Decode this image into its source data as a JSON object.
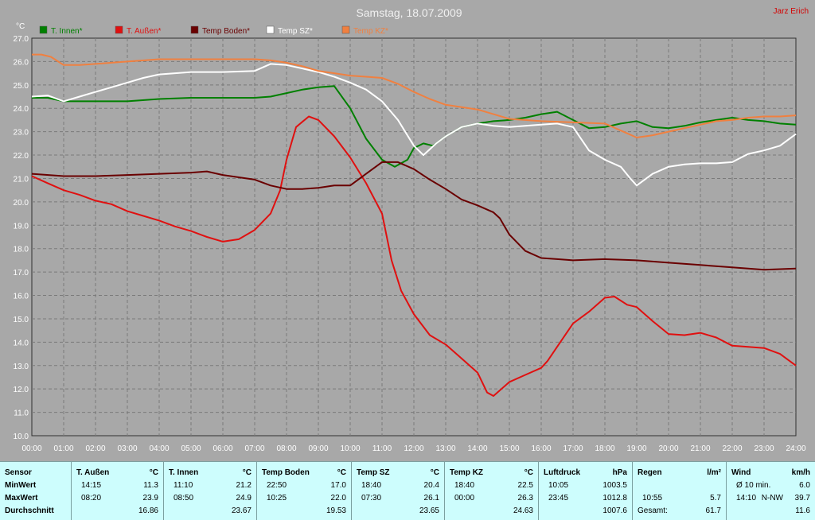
{
  "title": "Samstag, 18.07.2009",
  "author": "Jarz Erich",
  "chart_data": {
    "type": "line",
    "ylabel": "°C",
    "ylim": [
      10,
      27
    ],
    "y_ticks": [
      "10.0",
      "11.0",
      "12.0",
      "13.0",
      "14.0",
      "15.0",
      "16.0",
      "17.0",
      "18.0",
      "19.0",
      "20.0",
      "21.0",
      "22.0",
      "23.0",
      "24.0",
      "25.0",
      "26.0",
      "27.0"
    ],
    "x_ticks": [
      "00:00",
      "01:00",
      "02:00",
      "03:00",
      "04:00",
      "05:00",
      "06:00",
      "07:00",
      "08:00",
      "09:00",
      "10:00",
      "11:00",
      "12:00",
      "13:00",
      "14:00",
      "15:00",
      "16:00",
      "17:00",
      "18:00",
      "19:00",
      "20:00",
      "21:00",
      "22:00",
      "23:00",
      "24:00"
    ],
    "grid": true,
    "legend_placement": "top",
    "series": [
      {
        "name": "T. Innen*",
        "color": "#008000",
        "x": [
          0,
          0.5,
          1,
          1.5,
          2,
          3,
          4,
          5,
          6,
          7,
          7.5,
          8,
          8.5,
          9,
          9.5,
          10,
          10.5,
          11,
          11.4,
          11.8,
          12,
          12.3,
          12.6,
          13,
          13.5,
          14,
          14.5,
          15,
          15.5,
          16,
          16.5,
          17,
          17.5,
          18,
          18.5,
          19,
          19.5,
          20,
          20.5,
          21,
          21.5,
          22,
          22.5,
          23,
          23.5,
          24
        ],
        "y": [
          24.45,
          24.45,
          24.3,
          24.3,
          24.3,
          24.3,
          24.4,
          24.45,
          24.45,
          24.45,
          24.5,
          24.65,
          24.8,
          24.9,
          24.95,
          24,
          22.7,
          21.8,
          21.5,
          21.8,
          22.3,
          22.5,
          22.4,
          22.8,
          23.2,
          23.35,
          23.45,
          23.5,
          23.6,
          23.75,
          23.85,
          23.5,
          23.15,
          23.2,
          23.35,
          23.45,
          23.2,
          23.15,
          23.25,
          23.4,
          23.5,
          23.6,
          23.5,
          23.45,
          23.35,
          23.3
        ]
      },
      {
        "name": "T. Außen*",
        "color": "#e01010",
        "x": [
          0,
          0.5,
          1,
          1.5,
          2,
          2.5,
          3,
          3.5,
          4,
          4.5,
          5,
          5.5,
          6,
          6.5,
          7,
          7.5,
          7.8,
          8,
          8.3,
          8.7,
          9,
          9.5,
          10,
          10.5,
          11,
          11.3,
          11.6,
          12,
          12.5,
          13,
          13.5,
          14,
          14.3,
          14.5,
          15,
          15.5,
          16,
          16.2,
          16.5,
          17,
          17.5,
          18,
          18.3,
          18.7,
          19,
          19.5,
          20,
          20.5,
          21,
          21.5,
          22,
          22.5,
          23,
          23.5,
          24
        ],
        "y": [
          21.1,
          20.8,
          20.5,
          20.3,
          20.05,
          19.9,
          19.6,
          19.4,
          19.2,
          18.95,
          18.75,
          18.5,
          18.3,
          18.4,
          18.8,
          19.5,
          20.5,
          21.8,
          23.2,
          23.65,
          23.5,
          22.8,
          21.9,
          20.8,
          19.5,
          17.5,
          16.2,
          15.2,
          14.3,
          13.9,
          13.3,
          12.7,
          11.85,
          11.7,
          12.3,
          12.6,
          12.9,
          13.2,
          13.8,
          14.8,
          15.3,
          15.9,
          15.95,
          15.6,
          15.5,
          14.9,
          14.35,
          14.3,
          14.4,
          14.2,
          13.85,
          13.8,
          13.75,
          13.5,
          13.0
        ]
      },
      {
        "name": "Temp Boden*",
        "color": "#6a0000",
        "x": [
          0,
          1,
          2,
          3,
          4,
          5,
          5.5,
          6,
          7,
          7.5,
          8,
          8.5,
          9,
          9.5,
          10,
          10.5,
          11,
          11.5,
          12,
          12.5,
          13,
          13.5,
          14,
          14.5,
          14.7,
          15,
          15.5,
          16,
          16.5,
          17,
          18,
          19,
          20,
          21,
          22,
          23,
          24
        ],
        "y": [
          21.2,
          21.1,
          21.1,
          21.15,
          21.2,
          21.25,
          21.3,
          21.15,
          20.95,
          20.7,
          20.55,
          20.55,
          20.6,
          20.7,
          20.7,
          21.2,
          21.7,
          21.7,
          21.4,
          20.95,
          20.55,
          20.1,
          19.85,
          19.55,
          19.3,
          18.6,
          17.9,
          17.6,
          17.55,
          17.5,
          17.55,
          17.5,
          17.4,
          17.3,
          17.2,
          17.1,
          17.15
        ]
      },
      {
        "name": "Temp SZ*",
        "color": "#ffffff",
        "x": [
          0,
          0.5,
          1,
          1.5,
          2,
          2.5,
          3,
          3.5,
          4,
          5,
          6,
          7,
          7.5,
          8,
          8.5,
          9,
          9.5,
          10,
          10.5,
          11,
          11.5,
          12,
          12.3,
          12.7,
          13,
          13.5,
          14,
          14.5,
          15,
          15.5,
          16,
          16.5,
          17,
          17.5,
          18,
          18.5,
          18.8,
          19,
          19.5,
          20,
          20.5,
          21,
          21.5,
          22,
          22.5,
          23,
          23.5,
          24
        ],
        "y": [
          24.5,
          24.55,
          24.3,
          24.5,
          24.7,
          24.9,
          25.1,
          25.3,
          25.45,
          25.55,
          25.55,
          25.6,
          25.9,
          25.85,
          25.7,
          25.55,
          25.35,
          25.1,
          24.8,
          24.3,
          23.5,
          22.4,
          22.0,
          22.5,
          22.8,
          23.2,
          23.35,
          23.25,
          23.2,
          23.25,
          23.3,
          23.35,
          23.2,
          22.2,
          21.8,
          21.5,
          21.0,
          20.7,
          21.2,
          21.5,
          21.6,
          21.65,
          21.65,
          21.7,
          22.05,
          22.2,
          22.4,
          22.9
        ]
      },
      {
        "name": "Temp KZ*",
        "color": "#f08040",
        "x": [
          0,
          0.3,
          0.6,
          1,
          1.5,
          2,
          3,
          4,
          5,
          6,
          7,
          7.5,
          8,
          8.5,
          9,
          9.5,
          10,
          10.5,
          11,
          11.5,
          12,
          12.5,
          13,
          13.5,
          14,
          14.5,
          15,
          16,
          17,
          18,
          18.5,
          19,
          19.5,
          20,
          20.5,
          21,
          21.5,
          22,
          22.5,
          23,
          23.5,
          24
        ],
        "y": [
          26.3,
          26.3,
          26.2,
          25.85,
          25.85,
          25.9,
          26.0,
          26.1,
          26.1,
          26.1,
          26.1,
          26.05,
          25.95,
          25.8,
          25.6,
          25.5,
          25.4,
          25.35,
          25.3,
          25.05,
          24.7,
          24.4,
          24.15,
          24.05,
          23.95,
          23.75,
          23.55,
          23.45,
          23.4,
          23.35,
          23.05,
          22.75,
          22.85,
          23.0,
          23.15,
          23.3,
          23.45,
          23.5,
          23.6,
          23.65,
          23.65,
          23.7
        ]
      }
    ]
  },
  "stats": {
    "row_labels": [
      "Sensor",
      "MinWert",
      "MaxWert",
      "Durchschnitt"
    ],
    "columns": [
      {
        "name": "T. Außen",
        "unit": "°C",
        "min_time": "14:15",
        "min": "11.3",
        "max_time": "08:20",
        "max": "23.9",
        "avg": "16.86"
      },
      {
        "name": "T. Innen",
        "unit": "°C",
        "min_time": "11:10",
        "min": "21.2",
        "max_time": "08:50",
        "max": "24.9",
        "avg": "23.67"
      },
      {
        "name": "Temp Boden",
        "unit": "°C",
        "min_time": "22:50",
        "min": "17.0",
        "max_time": "10:25",
        "max": "22.0",
        "avg": "19.53"
      },
      {
        "name": "Temp SZ",
        "unit": "°C",
        "min_time": "18:40",
        "min": "20.4",
        "max_time": "07:30",
        "max": "26.1",
        "avg": "23.65"
      },
      {
        "name": "Temp KZ",
        "unit": "°C",
        "min_time": "18:40",
        "min": "22.5",
        "max_time": "00:00",
        "max": "26.3",
        "avg": "24.63"
      },
      {
        "name": "Luftdruck",
        "unit": "hPa",
        "min_time": "10:05",
        "min": "1003.5",
        "max_time": "23:45",
        "max": "1012.8",
        "avg": "1007.6"
      },
      {
        "name": "Regen",
        "unit": "l/m²",
        "min_time": "",
        "min": "",
        "max_time": "10:55",
        "max": "5.7",
        "avg_label": "Gesamt:",
        "avg": "61.7"
      },
      {
        "name": "Wind",
        "unit": "km/h",
        "min_time": "Ø 10 min.",
        "min": "6.0",
        "max_time": "14:10",
        "max_extra": "N-NW",
        "max": "39.7",
        "avg": "11.6"
      }
    ]
  }
}
